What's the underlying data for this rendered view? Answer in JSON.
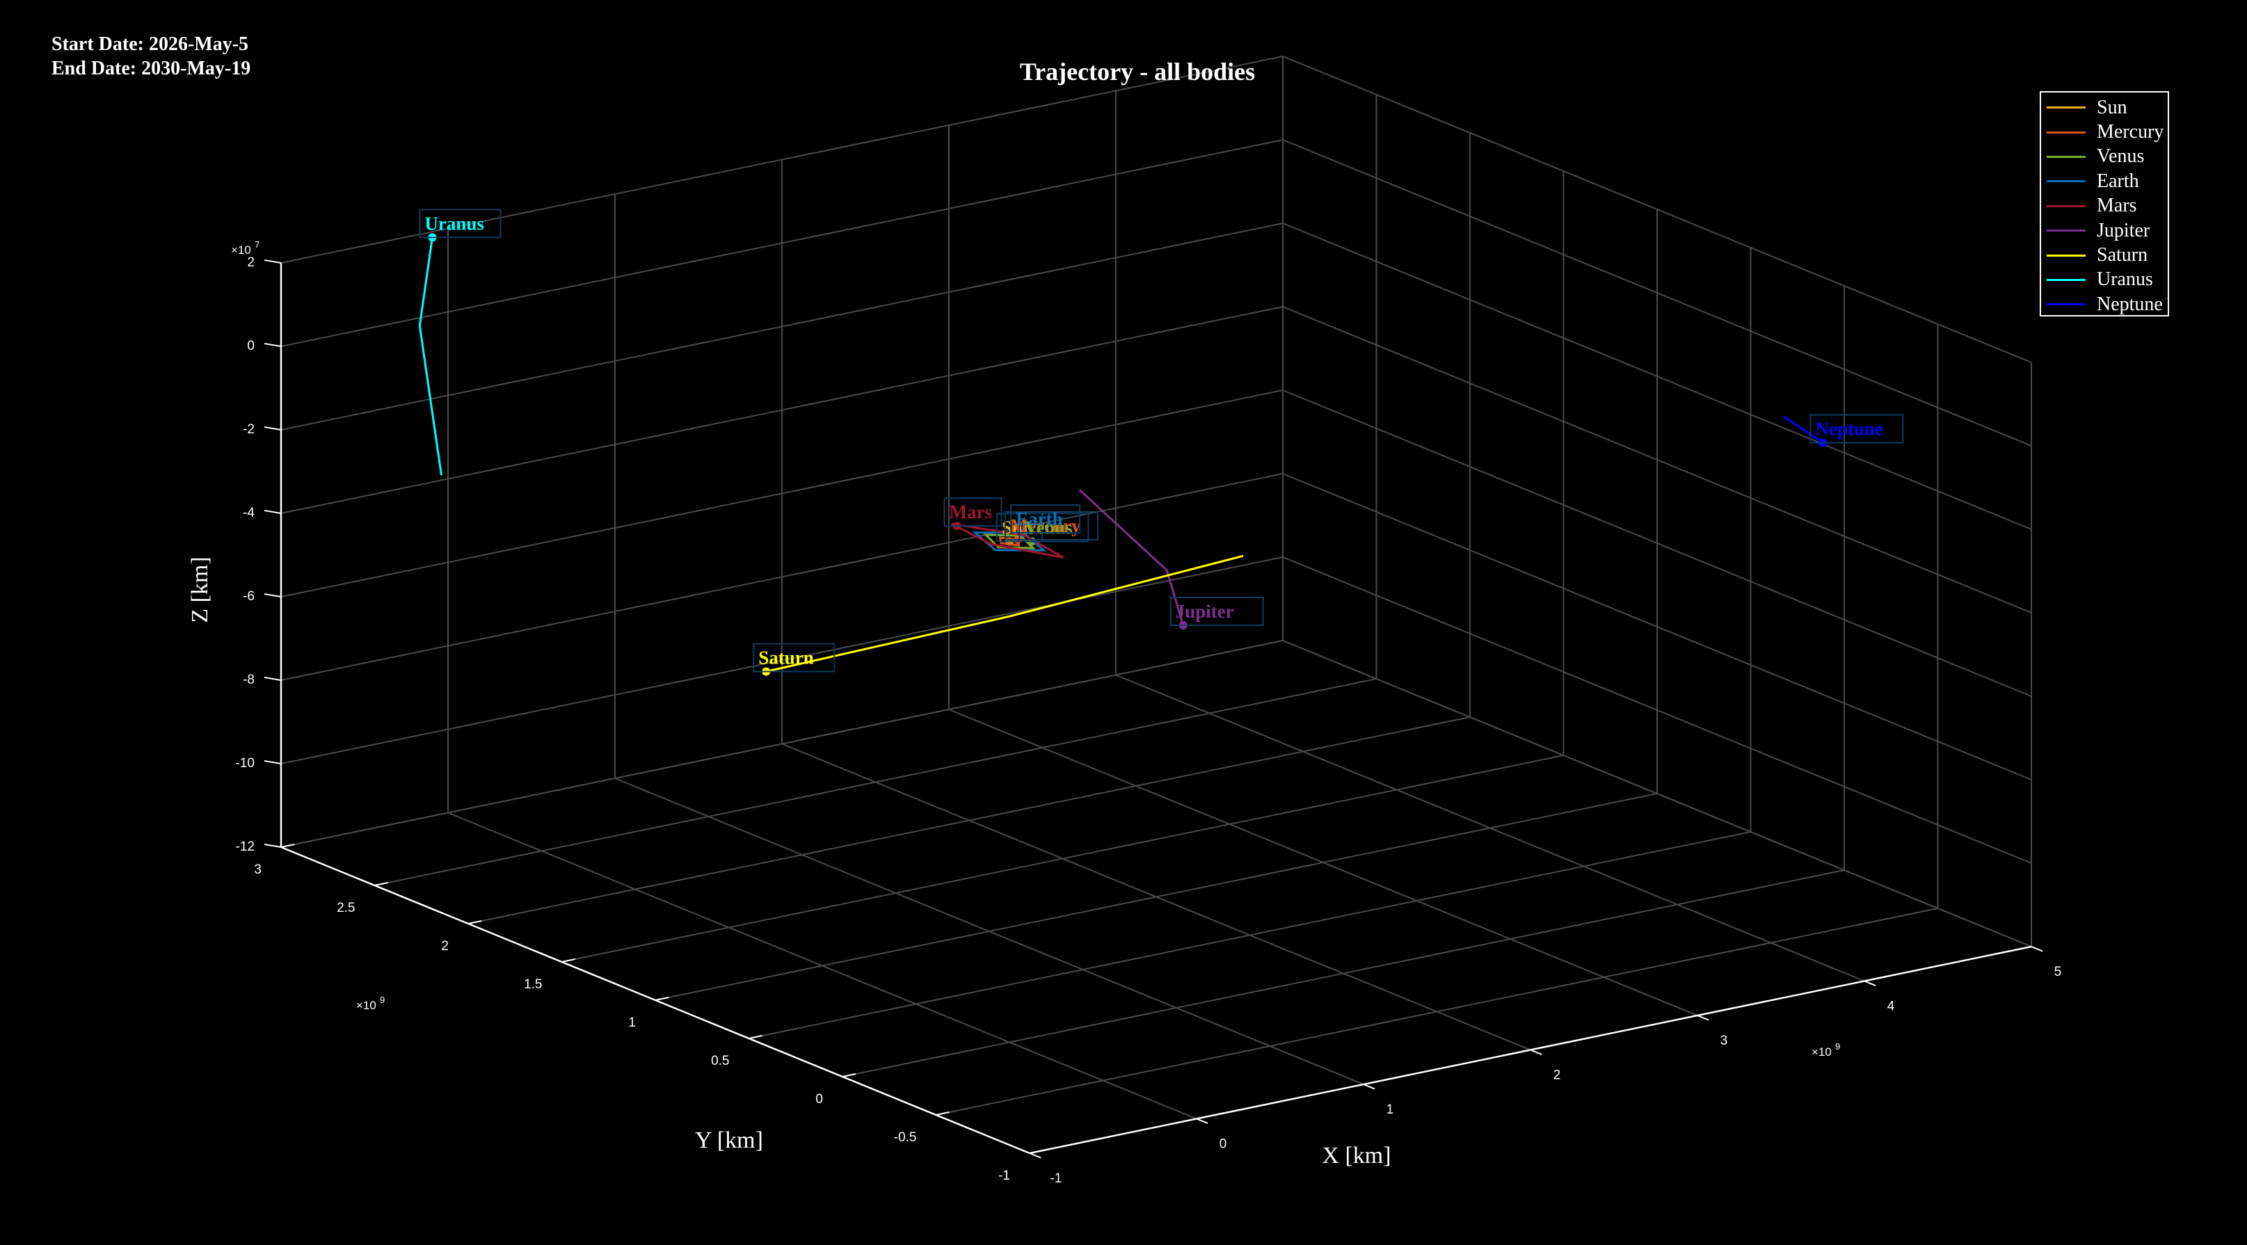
{
  "info": {
    "start_date": "Start Date: 2026-May-5",
    "end_date": "End Date: 2030-May-19"
  },
  "colors": {
    "background": "#000000",
    "axes": "#ffffff",
    "grid": "#4a4a4a"
  },
  "chart_data": {
    "type": "line",
    "projection": "3d",
    "title": "Trajectory - all bodies",
    "xlabel": "X [km]",
    "ylabel": "Y [km]",
    "zlabel": "Z [km]",
    "x_exponent": "×10^9",
    "y_exponent": "×10^9",
    "z_exponent": "×10^7",
    "xlim": [
      -1,
      5
    ],
    "ylim": [
      -1,
      3
    ],
    "zlim": [
      -12,
      2
    ],
    "x_ticks": [
      "-1",
      "0",
      "1",
      "2",
      "3",
      "4",
      "5"
    ],
    "y_ticks": [
      "-1",
      "-0.5",
      "0",
      "0.5",
      "1",
      "1.5",
      "2",
      "2.5",
      "3"
    ],
    "z_ticks": [
      "-12",
      "-10",
      "-8",
      "-6",
      "-4",
      "-2",
      "0",
      "2"
    ],
    "grid": true,
    "legend_position": "top-right",
    "series": [
      {
        "name": "Sun",
        "color": "#EDB120",
        "path": [
          [
            -0.001,
            0.0,
            0.01
          ],
          [
            0.001,
            -0.001,
            0.01
          ]
        ],
        "label_at": [
          0.0,
          0.0,
          0.0
        ]
      },
      {
        "name": "Mercury",
        "color": "#D95319",
        "path": [
          [
            0.05,
            0.0,
            0.0
          ],
          [
            0.0,
            0.05,
            0.0
          ],
          [
            -0.05,
            0.0,
            0.0
          ],
          [
            0.0,
            -0.05,
            0.0
          ],
          [
            0.05,
            0.0,
            0.0
          ]
        ],
        "label_at": [
          0.05,
          0.0,
          0.0
        ]
      },
      {
        "name": "Venus",
        "color": "#77AC30",
        "path": [
          [
            0.1,
            0.03,
            0.0
          ],
          [
            -0.03,
            0.1,
            0.0
          ],
          [
            -0.1,
            -0.03,
            0.0
          ],
          [
            0.03,
            -0.1,
            0.0
          ],
          [
            0.1,
            0.03,
            0.0
          ]
        ],
        "label_at": [
          0.09,
          -0.04,
          0.0
        ]
      },
      {
        "name": "Earth",
        "color": "#0072BD",
        "path": [
          [
            0.14,
            0.05,
            0.0
          ],
          [
            -0.05,
            0.14,
            0.0
          ],
          [
            -0.14,
            -0.05,
            0.0
          ],
          [
            0.05,
            -0.14,
            0.0
          ],
          [
            0.14,
            0.05,
            0.0
          ]
        ],
        "label_at": [
          0.14,
          0.05,
          0.0
        ]
      },
      {
        "name": "Mars",
        "color": "#A2142F",
        "path": [
          [
            0.2,
            0.1,
            -0.2
          ],
          [
            -0.1,
            0.22,
            0.1
          ],
          [
            -0.22,
            -0.1,
            0.3
          ],
          [
            0.1,
            -0.2,
            -0.1
          ],
          [
            0.2,
            0.1,
            -0.2
          ]
        ],
        "label_at": [
          -0.18,
          0.12,
          0.3
        ]
      },
      {
        "name": "Jupiter",
        "color": "#7E2F8E",
        "path": [
          [
            0.2,
            -0.75,
            -0.8
          ],
          [
            0.55,
            -0.35,
            -0.5
          ],
          [
            0.7,
            0.25,
            0.2
          ]
        ],
        "label_at": [
          0.2,
          -0.75,
          -0.8
        ]
      },
      {
        "name": "Saturn",
        "color": "#FFFF00",
        "path": [
          [
            1.4,
            0.0,
            -1.5
          ],
          [
            0.9,
            0.8,
            -4.0
          ],
          [
            0.0,
            1.3,
            -5.5
          ]
        ],
        "label_at": [
          0.0,
          1.3,
          -5.5
        ]
      },
      {
        "name": "Uranus",
        "color": "#00FFFF",
        "path": [
          [
            -0.6,
            2.5,
            -2.5
          ],
          [
            -0.45,
            2.75,
            0.5
          ],
          [
            -0.15,
            2.95,
            2.0
          ]
        ],
        "label_at": [
          -0.15,
          2.95,
          2.0
        ]
      },
      {
        "name": "Neptune",
        "color": "#0000FF",
        "path": [
          [
            4.2,
            -0.6,
            0.0
          ],
          [
            4.25,
            -0.45,
            0.0
          ],
          [
            4.3,
            -0.3,
            0.0
          ]
        ],
        "label_at": [
          4.2,
          -0.6,
          0.0
        ]
      }
    ]
  }
}
